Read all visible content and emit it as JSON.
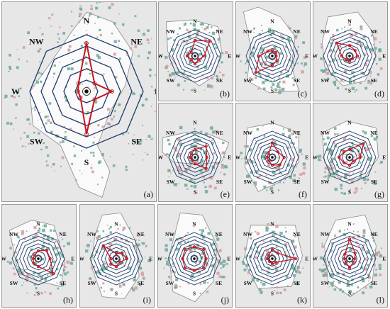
{
  "directions": [
    "N",
    "NE",
    "E",
    "SE",
    "S",
    "SW",
    "W",
    "NW"
  ],
  "colors": {
    "ring": "#1f3a6b",
    "trace": "#c8141e",
    "green": "#6ea897",
    "pink": "#d69aa0",
    "background": "#e7e7e7",
    "region": "#fafafa"
  },
  "panels": [
    {
      "id": "a",
      "tag": "(a)",
      "values": [
        0.85,
        0.2,
        0.45,
        0.2,
        0.75,
        0.15,
        0.15,
        0.2
      ]
    },
    {
      "id": "b",
      "tag": "(b)",
      "values": [
        0.6,
        0.8,
        0.35,
        0.2,
        0.3,
        0.2,
        0.3,
        0.2
      ]
    },
    {
      "id": "c",
      "tag": "(c)",
      "values": [
        0.2,
        0.2,
        0.15,
        0.25,
        0.35,
        0.9,
        0.5,
        0.25
      ]
    },
    {
      "id": "d",
      "tag": "(d)",
      "values": [
        0.4,
        0.3,
        0.3,
        0.15,
        0.2,
        0.2,
        0.3,
        0.7
      ]
    },
    {
      "id": "e",
      "tag": "(e)",
      "values": [
        0.3,
        0.6,
        0.45,
        0.6,
        0.25,
        0.15,
        0.2,
        0.2
      ]
    },
    {
      "id": "f",
      "tag": "(f)",
      "values": [
        0.55,
        0.3,
        0.45,
        0.4,
        0.3,
        0.2,
        0.2,
        0.2
      ]
    },
    {
      "id": "g",
      "tag": "(g)",
      "values": [
        0.3,
        0.75,
        0.4,
        0.2,
        0.3,
        0.3,
        0.4,
        0.3
      ]
    },
    {
      "id": "h",
      "tag": "(h)",
      "values": [
        0.3,
        0.45,
        0.45,
        0.8,
        0.3,
        0.25,
        0.2,
        0.2
      ]
    },
    {
      "id": "i",
      "tag": "(i)",
      "values": [
        0.2,
        0.3,
        0.4,
        0.2,
        0.3,
        0.3,
        0.2,
        0.7
      ]
    },
    {
      "id": "j",
      "tag": "(j)",
      "values": [
        0.45,
        0.5,
        0.45,
        0.5,
        0.45,
        0.5,
        0.45,
        0.5
      ]
    },
    {
      "id": "k",
      "tag": "(k)",
      "values": [
        0.35,
        0.3,
        0.9,
        0.2,
        0.2,
        0.15,
        0.2,
        0.2
      ]
    },
    {
      "id": "l",
      "tag": "(l)",
      "values": [
        0.75,
        0.3,
        0.2,
        0.2,
        0.35,
        0.2,
        0.2,
        0.25
      ]
    }
  ]
}
